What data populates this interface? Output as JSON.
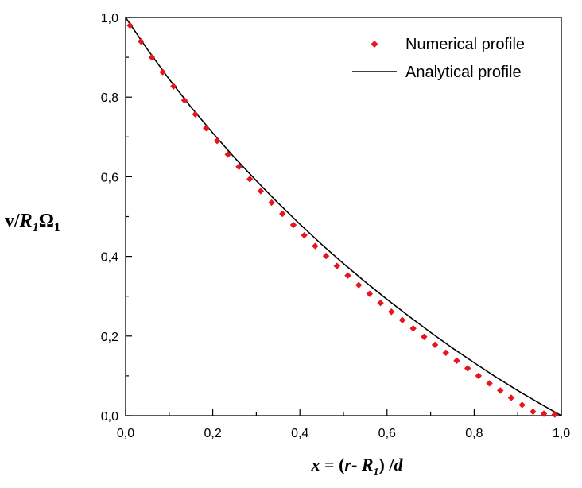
{
  "chart_data": {
    "type": "line",
    "title": "",
    "xlabel": {
      "text": "x = (r- R1) /d",
      "parts": {
        "x": "x",
        "eq": " = (",
        "r": "r",
        "minus": "- ",
        "R": "R",
        "R_sub": "1",
        "close": ") /",
        "d": "d"
      }
    },
    "ylabel": {
      "text": "v/R1Ω1",
      "parts": {
        "v": "v/",
        "R": "R",
        "R_sub": "1",
        "omega": "Ω",
        "omega_sub": "1"
      }
    },
    "xlim": [
      0.0,
      1.0
    ],
    "ylim": [
      0.0,
      1.0
    ],
    "xticks": [
      "0,0",
      "0,2",
      "0,4",
      "0,6",
      "0,8",
      "1,0"
    ],
    "yticks": [
      "0,0",
      "0,2",
      "0,4",
      "0,6",
      "0,8",
      "1,0"
    ],
    "tick_values": [
      0.0,
      0.2,
      0.4,
      0.6,
      0.8,
      1.0
    ],
    "legend_position": "top-right",
    "series": [
      {
        "name": "Numerical profile",
        "style": "markers",
        "marker": "diamond",
        "color": "#e8141e",
        "x": [
          0.01,
          0.035,
          0.06,
          0.085,
          0.11,
          0.135,
          0.16,
          0.185,
          0.21,
          0.235,
          0.26,
          0.285,
          0.31,
          0.335,
          0.36,
          0.385,
          0.41,
          0.435,
          0.46,
          0.485,
          0.51,
          0.535,
          0.56,
          0.585,
          0.61,
          0.635,
          0.66,
          0.685,
          0.71,
          0.735,
          0.76,
          0.785,
          0.81,
          0.835,
          0.86,
          0.885,
          0.91,
          0.935,
          0.96,
          0.985
        ],
        "y": [
          0.98,
          0.94,
          0.9,
          0.863,
          0.827,
          0.792,
          0.757,
          0.722,
          0.69,
          0.656,
          0.625,
          0.594,
          0.564,
          0.535,
          0.507,
          0.479,
          0.453,
          0.426,
          0.401,
          0.376,
          0.352,
          0.328,
          0.306,
          0.283,
          0.261,
          0.24,
          0.219,
          0.198,
          0.178,
          0.158,
          0.138,
          0.119,
          0.1,
          0.081,
          0.063,
          0.045,
          0.027,
          0.01,
          0.005,
          0.003
        ]
      },
      {
        "name": "Analytical profile",
        "style": "line",
        "color": "#000000",
        "x": [
          0.0,
          0.05,
          0.1,
          0.15,
          0.2,
          0.25,
          0.3,
          0.35,
          0.4,
          0.45,
          0.5,
          0.55,
          0.6,
          0.65,
          0.7,
          0.75,
          0.8,
          0.85,
          0.9,
          0.95,
          1.0
        ],
        "y": [
          1.0,
          0.92,
          0.845,
          0.775,
          0.71,
          0.648,
          0.59,
          0.534,
          0.481,
          0.43,
          0.382,
          0.336,
          0.292,
          0.25,
          0.209,
          0.17,
          0.133,
          0.097,
          0.063,
          0.031,
          0.0
        ]
      }
    ]
  }
}
